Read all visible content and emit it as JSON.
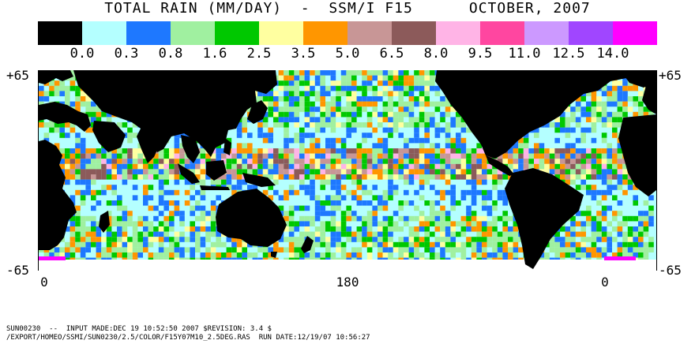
{
  "title": "TOTAL RAIN (MM/DAY)  -  SSM/I F15      OCTOBER, 2007",
  "legend": {
    "colors": [
      "#000000",
      "#b4ffff",
      "#1e78ff",
      "#a0f0a0",
      "#00c800",
      "#ffffa0",
      "#ff9600",
      "#c89696",
      "#8c5a5a",
      "#ffb4e6",
      "#ff46a0",
      "#cc99ff",
      "#a046ff",
      "#ff00ff"
    ],
    "labels": [
      "0.0",
      "0.3",
      "0.8",
      "1.6",
      "2.5",
      "3.5",
      "5.0",
      "6.5",
      "8.0",
      "9.5",
      "11.0",
      "12.5",
      "14.0"
    ]
  },
  "map": {
    "lat_top_left": "+65",
    "lat_top_right": "+65",
    "lat_bottom_left": "-65",
    "lat_bottom_right": "-65",
    "lon_labels": [
      "0",
      "180",
      "0"
    ],
    "land_color": "#000000",
    "ocean_base_color": "#b4ffff"
  },
  "footer": {
    "line1": "SUN00230  --  INPUT MADE:DEC 19 10:52:50 2007 $REVISION: 3.4 $",
    "line2": "/EXPORT/HOMEO/SSMI/SUN0230/2.5/COLOR/F15Y07M10_2.5DEG.RAS  RUN DATE:12/19/07 10:56:27"
  }
}
